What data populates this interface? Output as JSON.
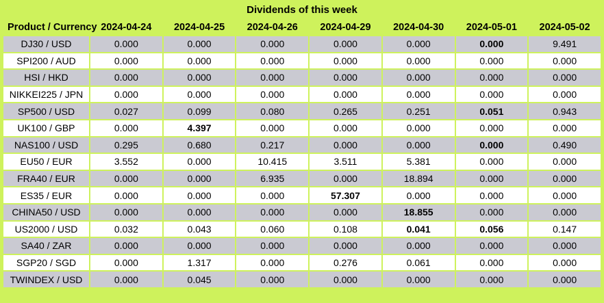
{
  "title": "Dividends of this week",
  "colors": {
    "background": "#cef25c",
    "row_gray": "#cacad2",
    "row_white": "#ffffff",
    "text": "#000000"
  },
  "table": {
    "product_header": "Product / Currency",
    "date_headers": [
      "2024-04-24",
      "2024-04-25",
      "2024-04-26",
      "2024-04-29",
      "2024-04-30",
      "2024-05-01",
      "2024-05-02"
    ],
    "rows": [
      {
        "product": "DJ30 / USD",
        "values": [
          "0.000",
          "0.000",
          "0.000",
          "0.000",
          "0.000",
          "0.000",
          "9.491"
        ],
        "bold_cols": [
          5
        ]
      },
      {
        "product": "SPI200 / AUD",
        "values": [
          "0.000",
          "0.000",
          "0.000",
          "0.000",
          "0.000",
          "0.000",
          "0.000"
        ],
        "bold_cols": []
      },
      {
        "product": "HSI / HKD",
        "values": [
          "0.000",
          "0.000",
          "0.000",
          "0.000",
          "0.000",
          "0.000",
          "0.000"
        ],
        "bold_cols": []
      },
      {
        "product": "NIKKEI225 / JPN",
        "values": [
          "0.000",
          "0.000",
          "0.000",
          "0.000",
          "0.000",
          "0.000",
          "0.000"
        ],
        "bold_cols": []
      },
      {
        "product": "SP500 / USD",
        "values": [
          "0.027",
          "0.099",
          "0.080",
          "0.265",
          "0.251",
          "0.051",
          "0.943"
        ],
        "bold_cols": [
          5
        ]
      },
      {
        "product": "UK100 / GBP",
        "values": [
          "0.000",
          "4.397",
          "0.000",
          "0.000",
          "0.000",
          "0.000",
          "0.000"
        ],
        "bold_cols": [
          1
        ]
      },
      {
        "product": "NAS100 / USD",
        "values": [
          "0.295",
          "0.680",
          "0.217",
          "0.000",
          "0.000",
          "0.000",
          "0.490"
        ],
        "bold_cols": [
          5
        ]
      },
      {
        "product": "EU50 / EUR",
        "values": [
          "3.552",
          "0.000",
          "10.415",
          "3.511",
          "5.381",
          "0.000",
          "0.000"
        ],
        "bold_cols": []
      },
      {
        "product": "FRA40 / EUR",
        "values": [
          "0.000",
          "0.000",
          "6.935",
          "0.000",
          "18.894",
          "0.000",
          "0.000"
        ],
        "bold_cols": []
      },
      {
        "product": "ES35 / EUR",
        "values": [
          "0.000",
          "0.000",
          "0.000",
          "57.307",
          "0.000",
          "0.000",
          "0.000"
        ],
        "bold_cols": [
          3
        ]
      },
      {
        "product": "CHINA50 / USD",
        "values": [
          "0.000",
          "0.000",
          "0.000",
          "0.000",
          "18.855",
          "0.000",
          "0.000"
        ],
        "bold_cols": [
          4
        ]
      },
      {
        "product": "US2000 / USD",
        "values": [
          "0.032",
          "0.043",
          "0.060",
          "0.108",
          "0.041",
          "0.056",
          "0.147"
        ],
        "bold_cols": [
          4,
          5
        ]
      },
      {
        "product": "SA40 / ZAR",
        "values": [
          "0.000",
          "0.000",
          "0.000",
          "0.000",
          "0.000",
          "0.000",
          "0.000"
        ],
        "bold_cols": []
      },
      {
        "product": "SGP20 / SGD",
        "values": [
          "0.000",
          "1.317",
          "0.000",
          "0.276",
          "0.061",
          "0.000",
          "0.000"
        ],
        "bold_cols": []
      },
      {
        "product": "TWINDEX / USD",
        "values": [
          "0.000",
          "0.045",
          "0.000",
          "0.000",
          "0.000",
          "0.000",
          "0.000"
        ],
        "bold_cols": []
      }
    ]
  },
  "chart_data": {
    "type": "table",
    "title": "Dividends of this week",
    "columns": [
      "Product / Currency",
      "2024-04-24",
      "2024-04-25",
      "2024-04-26",
      "2024-04-29",
      "2024-04-30",
      "2024-05-01",
      "2024-05-02"
    ],
    "rows": [
      [
        "DJ30 / USD",
        0.0,
        0.0,
        0.0,
        0.0,
        0.0,
        0.0,
        9.491
      ],
      [
        "SPI200 / AUD",
        0.0,
        0.0,
        0.0,
        0.0,
        0.0,
        0.0,
        0.0
      ],
      [
        "HSI / HKD",
        0.0,
        0.0,
        0.0,
        0.0,
        0.0,
        0.0,
        0.0
      ],
      [
        "NIKKEI225 / JPN",
        0.0,
        0.0,
        0.0,
        0.0,
        0.0,
        0.0,
        0.0
      ],
      [
        "SP500 / USD",
        0.027,
        0.099,
        0.08,
        0.265,
        0.251,
        0.051,
        0.943
      ],
      [
        "UK100 / GBP",
        0.0,
        4.397,
        0.0,
        0.0,
        0.0,
        0.0,
        0.0
      ],
      [
        "NAS100 / USD",
        0.295,
        0.68,
        0.217,
        0.0,
        0.0,
        0.0,
        0.49
      ],
      [
        "EU50 / EUR",
        3.552,
        0.0,
        10.415,
        3.511,
        5.381,
        0.0,
        0.0
      ],
      [
        "FRA40 / EUR",
        0.0,
        0.0,
        6.935,
        0.0,
        18.894,
        0.0,
        0.0
      ],
      [
        "ES35 / EUR",
        0.0,
        0.0,
        0.0,
        57.307,
        0.0,
        0.0,
        0.0
      ],
      [
        "CHINA50 / USD",
        0.0,
        0.0,
        0.0,
        0.0,
        18.855,
        0.0,
        0.0
      ],
      [
        "US2000 / USD",
        0.032,
        0.043,
        0.06,
        0.108,
        0.041,
        0.056,
        0.147
      ],
      [
        "SA40 / ZAR",
        0.0,
        0.0,
        0.0,
        0.0,
        0.0,
        0.0,
        0.0
      ],
      [
        "SGP20 / SGD",
        0.0,
        1.317,
        0.0,
        0.276,
        0.061,
        0.0,
        0.0
      ],
      [
        "TWINDEX / USD",
        0.0,
        0.045,
        0.0,
        0.0,
        0.0,
        0.0,
        0.0
      ]
    ],
    "layout": "alternating gray/white rows on lime-green background, bold cells: DJ30@2024-05-01, SP500@2024-05-01, UK100@2024-04-25, NAS100@2024-05-01, ES35@2024-04-29, CHINA50@2024-04-30, US2000@2024-04-30, US2000@2024-05-01"
  }
}
